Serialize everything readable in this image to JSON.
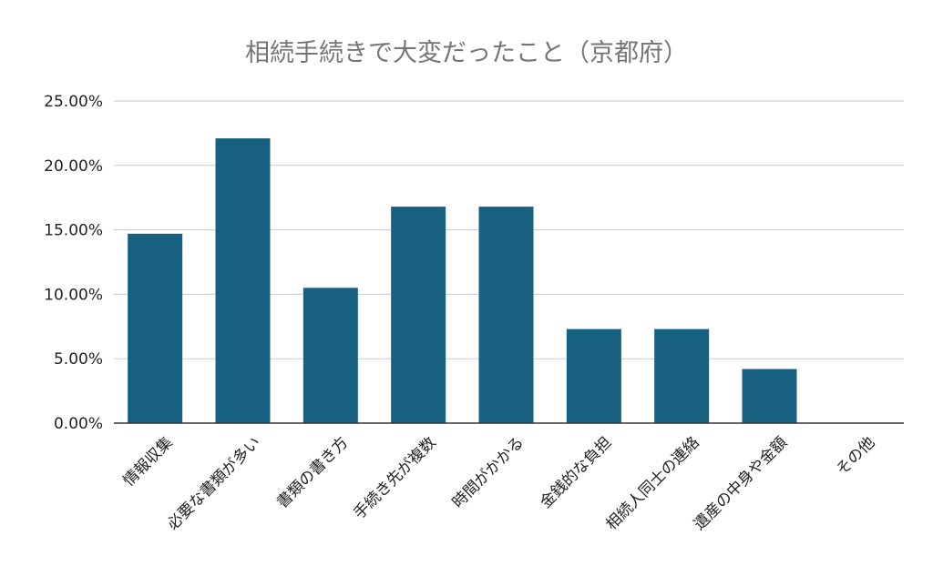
{
  "chart_data": {
    "type": "bar",
    "title": "相続手続きで大変だったこと（京都府）",
    "xlabel": "",
    "ylabel": "",
    "categories": [
      "情報収集",
      "必要な書類が多い",
      "書類の書き方",
      "手続き先が複数",
      "時間がかかる",
      "金銭的な負担",
      "相続人同士の連絡",
      "遺産の中身や金額",
      "その他"
    ],
    "values": [
      0.147,
      0.221,
      0.105,
      0.168,
      0.168,
      0.073,
      0.073,
      0.042,
      0
    ],
    "ylim": [
      0,
      0.25
    ],
    "yticks": [
      0,
      0.05,
      0.1,
      0.15,
      0.2,
      0.25
    ],
    "ytick_labels": [
      "0.00%",
      "5.00%",
      "10.00%",
      "15.00%",
      "20.00%",
      "25.00%"
    ],
    "bar_color": "#17607f",
    "grid": true,
    "legend": "none"
  }
}
